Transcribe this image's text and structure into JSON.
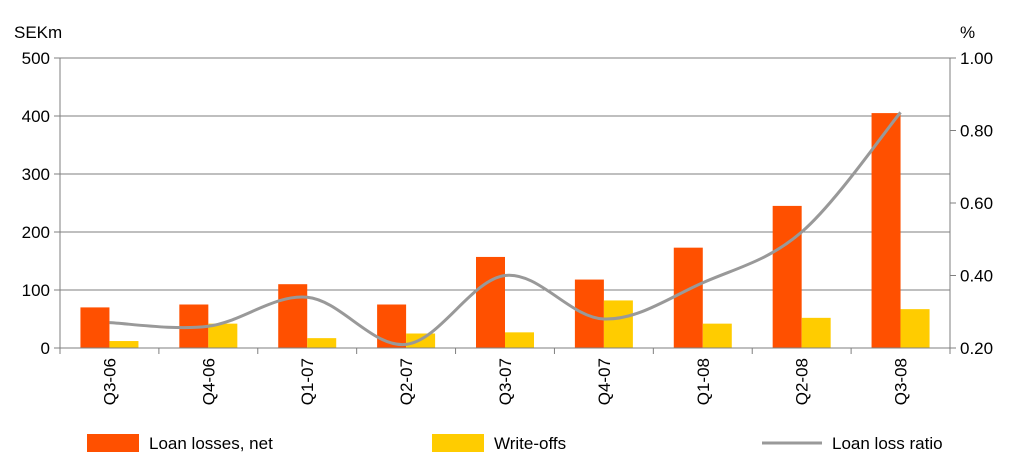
{
  "chart_data": {
    "type": "bar",
    "categories": [
      "Q3-06",
      "Q4-06",
      "Q1-07",
      "Q2-07",
      "Q3-07",
      "Q4-07",
      "Q1-08",
      "Q2-08",
      "Q3-08"
    ],
    "series": [
      {
        "name": "Loan losses, net",
        "kind": "bar",
        "axis": "left",
        "color": "#FF5000",
        "values": [
          70,
          75,
          110,
          75,
          157,
          118,
          173,
          245,
          405
        ]
      },
      {
        "name": "Write-offs",
        "kind": "bar",
        "axis": "left",
        "color": "#FFCC00",
        "values": [
          12,
          42,
          17,
          25,
          27,
          82,
          42,
          52,
          67
        ]
      },
      {
        "name": "Loan loss ratio",
        "kind": "line",
        "axis": "right",
        "color": "#999999",
        "values": [
          0.27,
          0.26,
          0.34,
          0.21,
          0.4,
          0.28,
          0.38,
          0.52,
          0.85
        ]
      }
    ],
    "y_left": {
      "label": "SEKm",
      "ylim": [
        0,
        500
      ],
      "ticks": [
        "0",
        "100",
        "200",
        "300",
        "400",
        "500"
      ]
    },
    "y_right": {
      "label": "%",
      "ylim": [
        0.2,
        1.0
      ],
      "ticks": [
        "0.20",
        "0.40",
        "0.60",
        "0.80",
        "1.00"
      ]
    },
    "grid": true,
    "legend_position": "bottom"
  }
}
